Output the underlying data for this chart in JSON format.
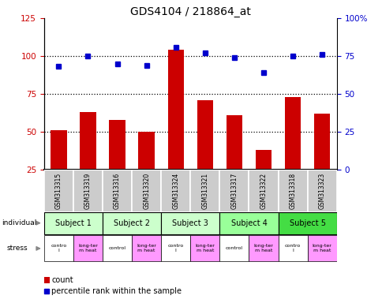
{
  "title": "GDS4104 / 218864_at",
  "samples": [
    "GSM313315",
    "GSM313319",
    "GSM313316",
    "GSM313320",
    "GSM313324",
    "GSM313321",
    "GSM313317",
    "GSM313322",
    "GSM313318",
    "GSM313323"
  ],
  "bar_values": [
    51,
    63,
    58,
    50,
    104,
    71,
    61,
    38,
    73,
    62
  ],
  "percentile_left_axis": [
    93,
    100,
    95,
    94,
    106,
    102,
    99,
    89,
    100,
    101
  ],
  "left_ylim": [
    25,
    125
  ],
  "left_yticks": [
    25,
    50,
    75,
    100,
    125
  ],
  "right_ylim": [
    0,
    100
  ],
  "right_yticks": [
    0,
    25,
    50,
    75,
    100
  ],
  "right_ylabel_ticks": [
    "0",
    "25",
    "50",
    "75",
    "100%"
  ],
  "hlines": [
    50,
    75,
    100
  ],
  "bar_color": "#cc0000",
  "dot_color": "#0000cc",
  "individuals": [
    {
      "label": "Subject 1",
      "cols": [
        0,
        1
      ],
      "color": "#ccffcc"
    },
    {
      "label": "Subject 2",
      "cols": [
        2,
        3
      ],
      "color": "#ccffcc"
    },
    {
      "label": "Subject 3",
      "cols": [
        4,
        5
      ],
      "color": "#ccffcc"
    },
    {
      "label": "Subject 4",
      "cols": [
        6,
        7
      ],
      "color": "#99ff99"
    },
    {
      "label": "Subject 5",
      "cols": [
        8,
        9
      ],
      "color": "#44dd44"
    }
  ],
  "stress_labels": [
    "contro\nl",
    "long-ter\nm heat",
    "control",
    "long-ter\nm heat",
    "contro\nl",
    "long-ter\nm heat",
    "control",
    "long-ter\nm heat",
    "contro\nl",
    "long-ter\nm heat"
  ],
  "stress_colors": [
    "#ffffff",
    "#ff99ff",
    "#ffffff",
    "#ff99ff",
    "#ffffff",
    "#ff99ff",
    "#ffffff",
    "#ff99ff",
    "#ffffff",
    "#ff99ff"
  ],
  "sample_bg_color": "#cccccc",
  "legend_count_color": "#cc0000",
  "legend_dot_color": "#0000cc",
  "left_tick_color": "#cc0000",
  "right_tick_color": "#0000cc"
}
